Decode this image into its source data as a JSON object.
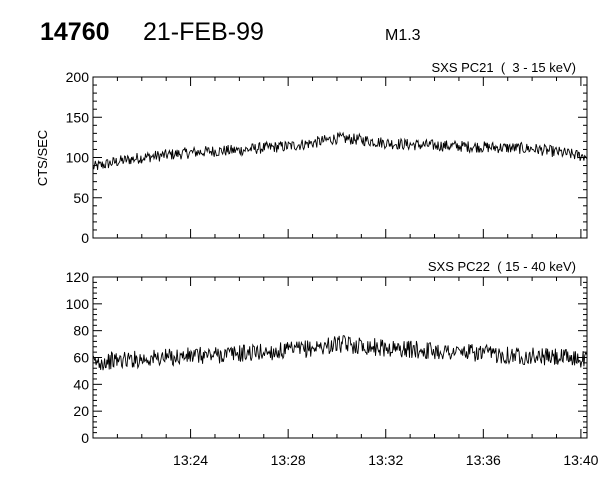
{
  "header": {
    "flare_id": "14760",
    "date": "21-FEB-99",
    "class": "M1.3"
  },
  "chart_data": [
    {
      "type": "line",
      "title": "SXS PC21  (  3 - 15 keV)",
      "xlabel": "",
      "ylabel": "CTS/SEC",
      "xlim": [
        "13:20:00",
        "13:40:15"
      ],
      "ylim": [
        0,
        200
      ],
      "yticks": [
        0,
        50,
        100,
        150,
        200
      ],
      "xticks": [
        "13:24",
        "13:28",
        "13:32",
        "13:36",
        "13:40"
      ],
      "grid": false,
      "series": [
        {
          "x": [
            "13:20:00",
            "13:21:00",
            "13:22:00",
            "13:23:00",
            "13:24:00",
            "13:25:00",
            "13:26:00",
            "13:27:00",
            "13:28:00",
            "13:29:00",
            "13:30:00",
            "13:31:00",
            "13:32:00",
            "13:33:00",
            "13:34:00",
            "13:35:00",
            "13:36:00",
            "13:37:00",
            "13:38:00",
            "13:39:00",
            "13:40:00"
          ],
          "values": [
            88,
            95,
            100,
            103,
            106,
            108,
            109,
            112,
            114,
            118,
            124,
            122,
            118,
            116,
            115,
            114,
            113,
            112,
            111,
            107,
            102
          ]
        }
      ]
    },
    {
      "type": "line",
      "title": "SXS PC22  ( 15 - 40 keV)",
      "xlabel": "",
      "ylabel": "",
      "xlim": [
        "13:20:00",
        "13:40:15"
      ],
      "ylim": [
        0,
        120
      ],
      "yticks": [
        0,
        20,
        40,
        60,
        80,
        100,
        120
      ],
      "xticks": [
        "13:24",
        "13:28",
        "13:32",
        "13:36",
        "13:40"
      ],
      "grid": false,
      "series": [
        {
          "x": [
            "13:20:00",
            "13:21:00",
            "13:22:00",
            "13:23:00",
            "13:24:00",
            "13:25:00",
            "13:26:00",
            "13:27:00",
            "13:28:00",
            "13:29:00",
            "13:30:00",
            "13:31:00",
            "13:32:00",
            "13:33:00",
            "13:34:00",
            "13:35:00",
            "13:36:00",
            "13:37:00",
            "13:38:00",
            "13:39:00",
            "13:40:00"
          ],
          "values": [
            56,
            58,
            59,
            60,
            61,
            62,
            63,
            64,
            65,
            67,
            70,
            69,
            67,
            66,
            65,
            64,
            63,
            62,
            61,
            60,
            59
          ]
        }
      ]
    }
  ]
}
